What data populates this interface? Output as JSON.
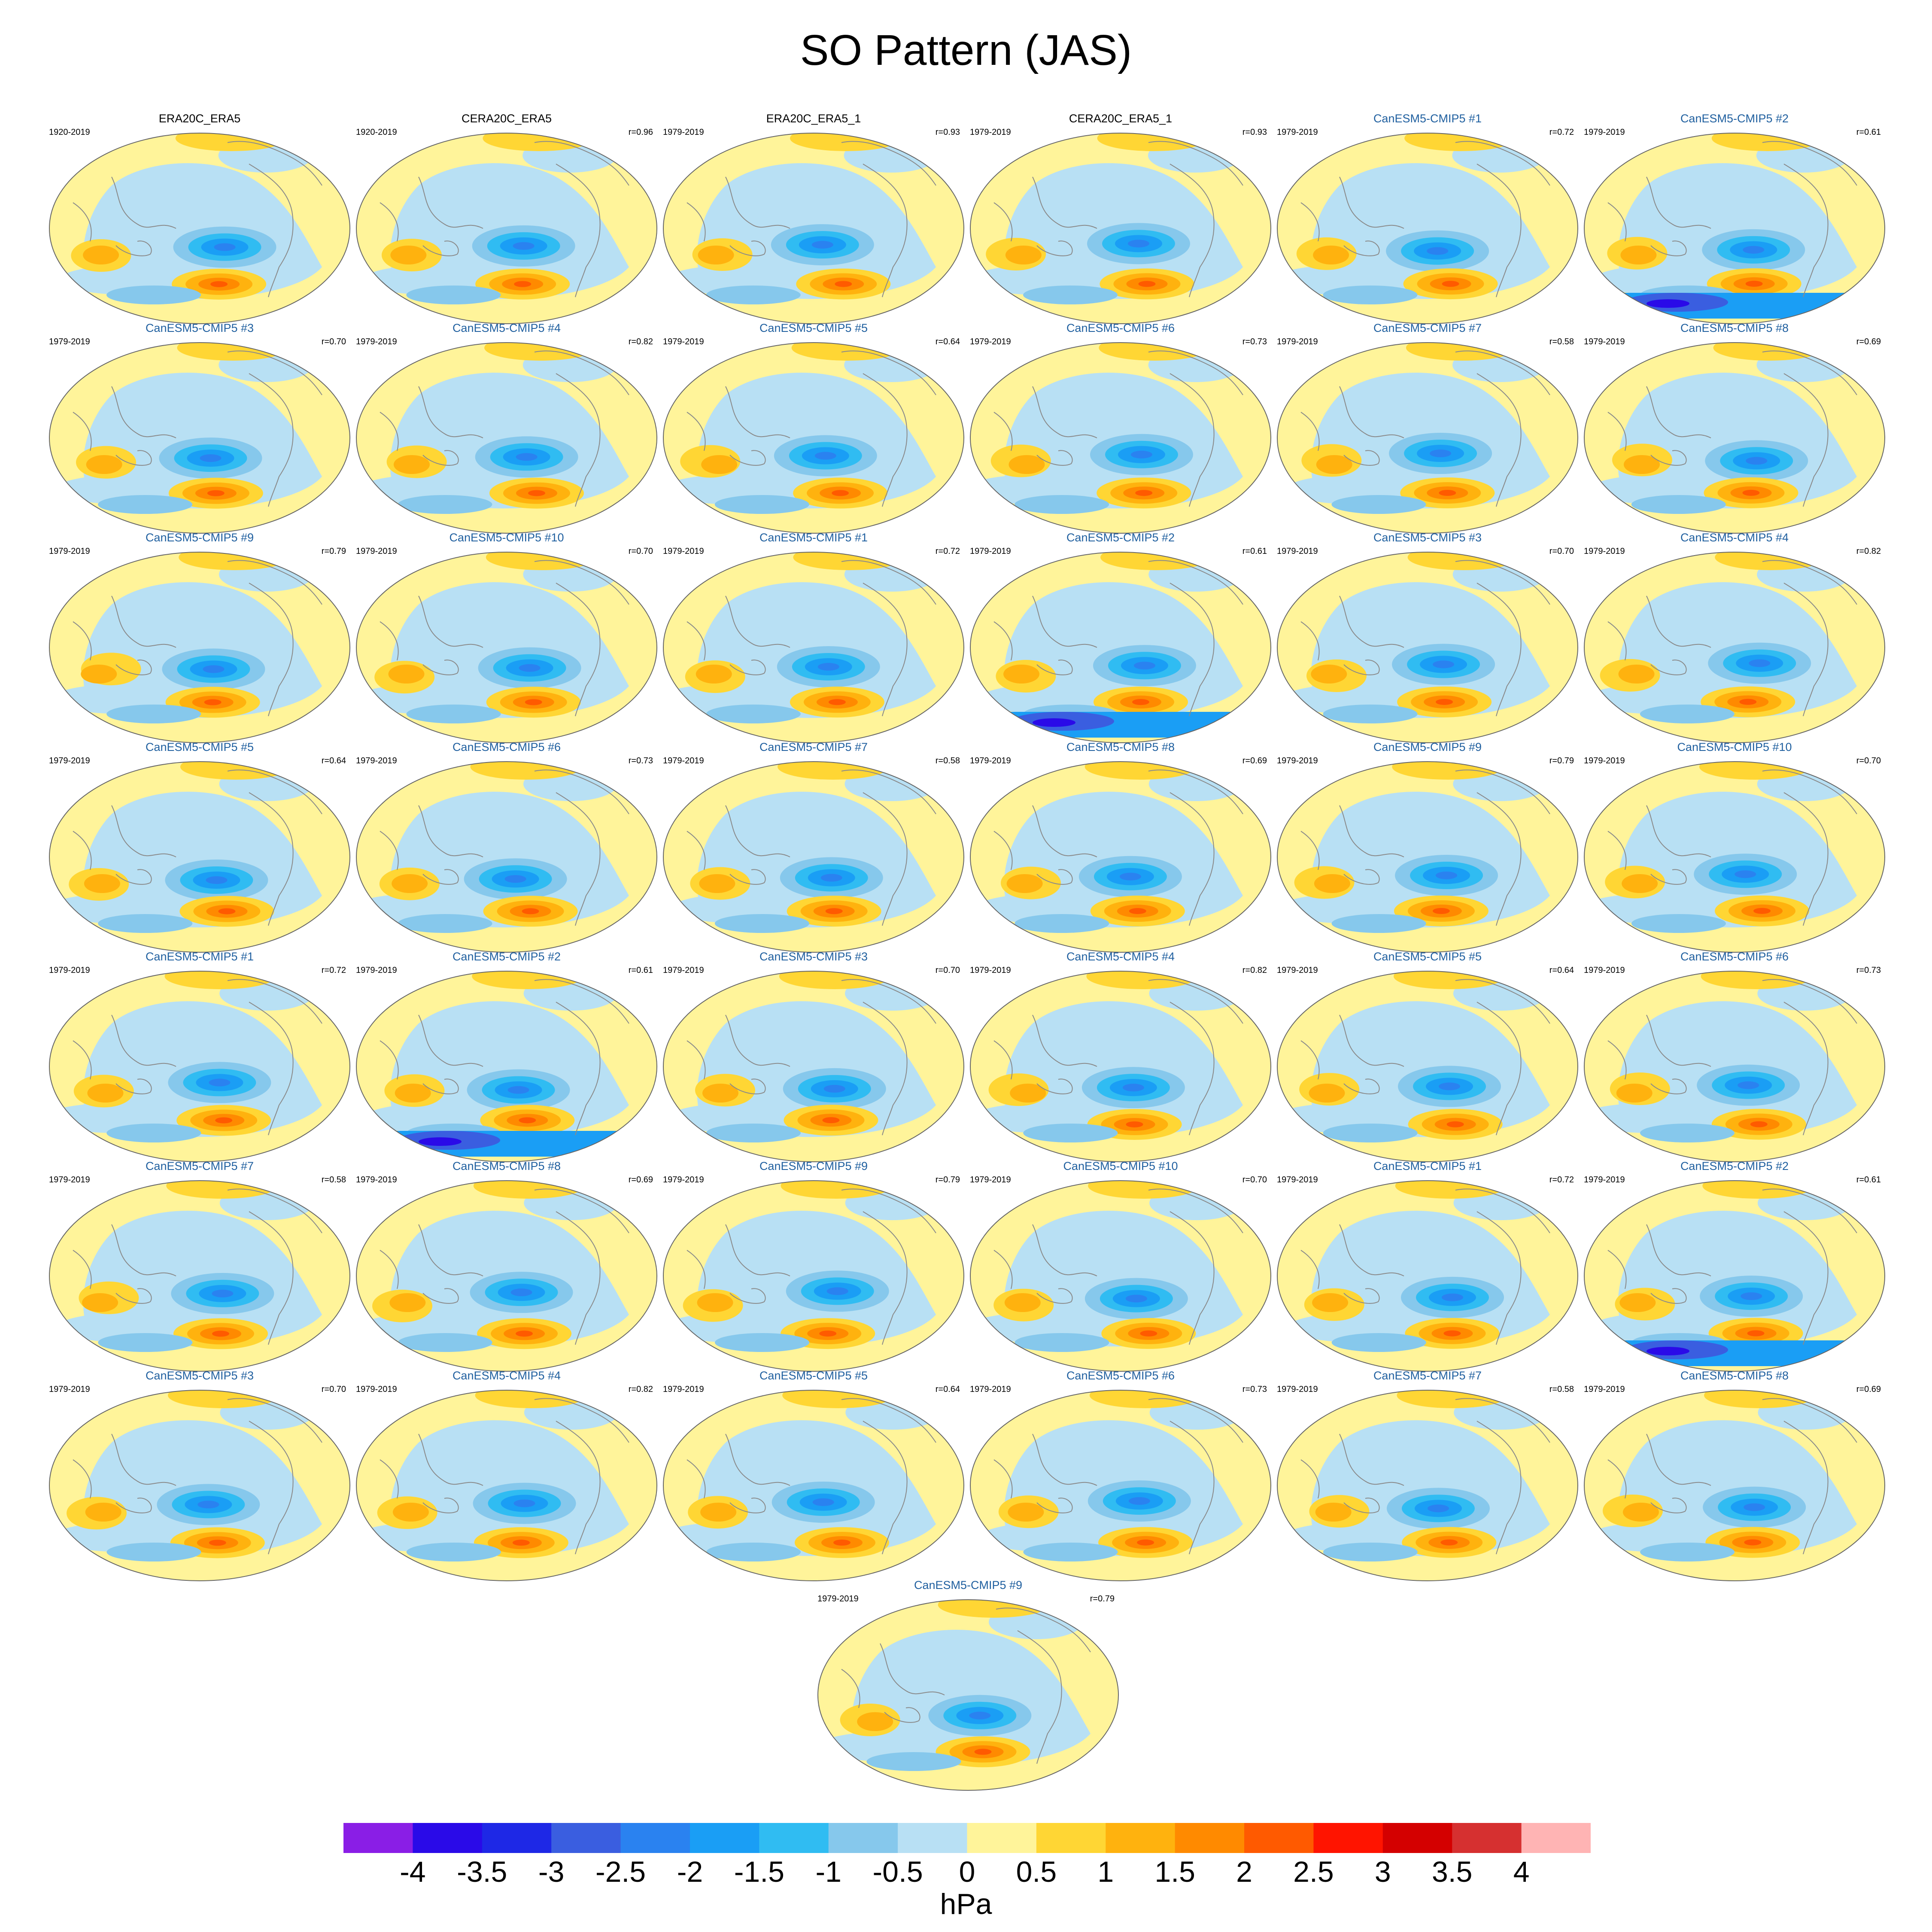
{
  "title": "SO Pattern (JAS)",
  "colors": {
    "model_title": "#1f5f9f",
    "land_outline": "#8a8a8a",
    "levels": [
      "#8a1ee6",
      "#2a0ae8",
      "#1e28e6",
      "#3a5ee0",
      "#2a82f0",
      "#1a9ef5",
      "#30bcf2",
      "#86c8ec",
      "#b8e0f4",
      "#fff49a",
      "#ffd634",
      "#ffb20e",
      "#ff8a00",
      "#ff5a00",
      "#ff1400",
      "#d40000",
      "#d63030",
      "#ffb4b4"
    ]
  },
  "chart_data": {
    "type": "heatmap",
    "description_units": "hPa",
    "colorbar": {
      "ticks": [
        "-4",
        "-3.5",
        "-3",
        "-2.5",
        "-2",
        "-1.5",
        "-1",
        "-0.5",
        "0",
        "0.5",
        "1",
        "1.5",
        "2",
        "2.5",
        "3",
        "3.5",
        "4"
      ],
      "unit_label": "hPa"
    },
    "panels": [
      {
        "title": "ERA20C_ERA5",
        "period": "1920-2019",
        "r": "",
        "kind": "obs"
      },
      {
        "title": "CERA20C_ERA5",
        "period": "1920-2019",
        "r": "r=0.96",
        "kind": "obs"
      },
      {
        "title": "ERA20C_ERA5_1",
        "period": "1979-2019",
        "r": "r=0.93",
        "kind": "obs"
      },
      {
        "title": "CERA20C_ERA5_1",
        "period": "1979-2019",
        "r": "r=0.93",
        "kind": "obs"
      },
      {
        "title": "CanESM5-CMIP5 #1",
        "period": "1979-2019",
        "r": "r=0.72",
        "kind": "model"
      },
      {
        "title": "CanESM5-CMIP5 #2",
        "period": "1979-2019",
        "r": "r=0.61",
        "kind": "model"
      },
      {
        "title": "CanESM5-CMIP5 #3",
        "period": "1979-2019",
        "r": "r=0.70",
        "kind": "model"
      },
      {
        "title": "CanESM5-CMIP5 #4",
        "period": "1979-2019",
        "r": "r=0.82",
        "kind": "model"
      },
      {
        "title": "CanESM5-CMIP5 #5",
        "period": "1979-2019",
        "r": "r=0.64",
        "kind": "model"
      },
      {
        "title": "CanESM5-CMIP5 #6",
        "period": "1979-2019",
        "r": "r=0.73",
        "kind": "model"
      },
      {
        "title": "CanESM5-CMIP5 #7",
        "period": "1979-2019",
        "r": "r=0.58",
        "kind": "model"
      },
      {
        "title": "CanESM5-CMIP5 #8",
        "period": "1979-2019",
        "r": "r=0.69",
        "kind": "model"
      },
      {
        "title": "CanESM5-CMIP5 #9",
        "period": "1979-2019",
        "r": "r=0.79",
        "kind": "model"
      },
      {
        "title": "CanESM5-CMIP5 #10",
        "period": "1979-2019",
        "r": "r=0.70",
        "kind": "model"
      },
      {
        "title": "CanESM5-CMIP5 #1",
        "period": "1979-2019",
        "r": "r=0.72",
        "kind": "model"
      },
      {
        "title": "CanESM5-CMIP5 #2",
        "period": "1979-2019",
        "r": "r=0.61",
        "kind": "model"
      },
      {
        "title": "CanESM5-CMIP5 #3",
        "period": "1979-2019",
        "r": "r=0.70",
        "kind": "model"
      },
      {
        "title": "CanESM5-CMIP5 #4",
        "period": "1979-2019",
        "r": "r=0.82",
        "kind": "model"
      },
      {
        "title": "CanESM5-CMIP5 #5",
        "period": "1979-2019",
        "r": "r=0.64",
        "kind": "model"
      },
      {
        "title": "CanESM5-CMIP5 #6",
        "period": "1979-2019",
        "r": "r=0.73",
        "kind": "model"
      },
      {
        "title": "CanESM5-CMIP5 #7",
        "period": "1979-2019",
        "r": "r=0.58",
        "kind": "model"
      },
      {
        "title": "CanESM5-CMIP5 #8",
        "period": "1979-2019",
        "r": "r=0.69",
        "kind": "model"
      },
      {
        "title": "CanESM5-CMIP5 #9",
        "period": "1979-2019",
        "r": "r=0.79",
        "kind": "model"
      },
      {
        "title": "CanESM5-CMIP5 #10",
        "period": "1979-2019",
        "r": "r=0.70",
        "kind": "model"
      },
      {
        "title": "CanESM5-CMIP5 #1",
        "period": "1979-2019",
        "r": "r=0.72",
        "kind": "model"
      },
      {
        "title": "CanESM5-CMIP5 #2",
        "period": "1979-2019",
        "r": "r=0.61",
        "kind": "model"
      },
      {
        "title": "CanESM5-CMIP5 #3",
        "period": "1979-2019",
        "r": "r=0.70",
        "kind": "model"
      },
      {
        "title": "CanESM5-CMIP5 #4",
        "period": "1979-2019",
        "r": "r=0.82",
        "kind": "model"
      },
      {
        "title": "CanESM5-CMIP5 #5",
        "period": "1979-2019",
        "r": "r=0.64",
        "kind": "model"
      },
      {
        "title": "CanESM5-CMIP5 #6",
        "period": "1979-2019",
        "r": "r=0.73",
        "kind": "model"
      },
      {
        "title": "CanESM5-CMIP5 #7",
        "period": "1979-2019",
        "r": "r=0.58",
        "kind": "model"
      },
      {
        "title": "CanESM5-CMIP5 #8",
        "period": "1979-2019",
        "r": "r=0.69",
        "kind": "model"
      },
      {
        "title": "CanESM5-CMIP5 #9",
        "period": "1979-2019",
        "r": "r=0.79",
        "kind": "model"
      },
      {
        "title": "CanESM5-CMIP5 #10",
        "period": "1979-2019",
        "r": "r=0.70",
        "kind": "model"
      },
      {
        "title": "CanESM5-CMIP5 #1",
        "period": "1979-2019",
        "r": "r=0.72",
        "kind": "model"
      },
      {
        "title": "CanESM5-CMIP5 #2",
        "period": "1979-2019",
        "r": "r=0.61",
        "kind": "model"
      },
      {
        "title": "CanESM5-CMIP5 #3",
        "period": "1979-2019",
        "r": "r=0.70",
        "kind": "model"
      },
      {
        "title": "CanESM5-CMIP5 #4",
        "period": "1979-2019",
        "r": "r=0.82",
        "kind": "model"
      },
      {
        "title": "CanESM5-CMIP5 #5",
        "period": "1979-2019",
        "r": "r=0.64",
        "kind": "model"
      },
      {
        "title": "CanESM5-CMIP5 #6",
        "period": "1979-2019",
        "r": "r=0.73",
        "kind": "model"
      },
      {
        "title": "CanESM5-CMIP5 #7",
        "period": "1979-2019",
        "r": "r=0.58",
        "kind": "model"
      },
      {
        "title": "CanESM5-CMIP5 #8",
        "period": "1979-2019",
        "r": "r=0.69",
        "kind": "model"
      },
      {
        "title": "CanESM5-CMIP5 #9",
        "period": "1979-2019",
        "r": "r=0.79",
        "kind": "model"
      }
    ]
  }
}
